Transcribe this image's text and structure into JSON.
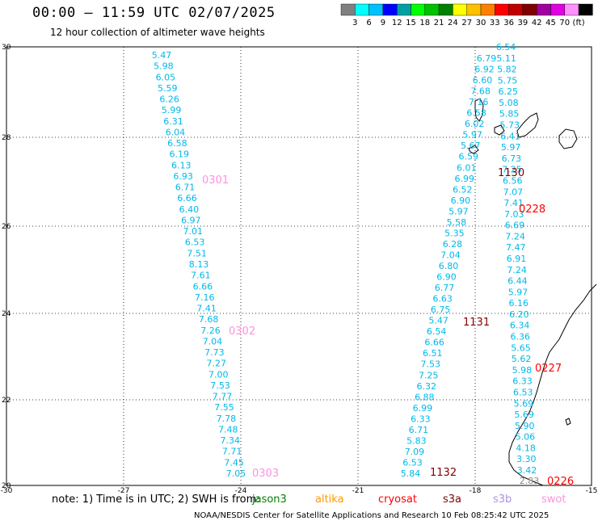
{
  "header": {
    "title": "00:00 – 11:59 UTC 02/07/2025",
    "subtitle": "12 hour collection of altimeter wave heights"
  },
  "colorbar": {
    "ticks": [
      "3",
      "6",
      "9",
      "12",
      "15",
      "18",
      "21",
      "24",
      "27",
      "30",
      "33",
      "36",
      "39",
      "42",
      "45",
      "70",
      "(ft)"
    ],
    "colors": [
      "#808080",
      "#00ffff",
      "#00c0ff",
      "#0000ff",
      "#00a0a0",
      "#00ff00",
      "#00c000",
      "#008000",
      "#ffff00",
      "#ffc000",
      "#ff8000",
      "#ff0000",
      "#c00000",
      "#800000",
      "#a000a0",
      "#e000e0",
      "#ff90ff",
      "#000000"
    ]
  },
  "axes": {
    "lon_ticks": [
      "-30",
      "-27",
      "-24",
      "-21",
      "-18",
      "-15"
    ],
    "lat_ticks": [
      "30",
      "28",
      "26",
      "24",
      "22",
      "20"
    ]
  },
  "pass_labels": [
    {
      "text": "0301",
      "color": "#ff90e0"
    },
    {
      "text": "0302",
      "color": "#ff90e0"
    },
    {
      "text": "0303",
      "color": "#ff90e0"
    },
    {
      "text": "1130",
      "color": "#800000"
    },
    {
      "text": "0228",
      "color": "#ff0000"
    },
    {
      "text": "1131",
      "color": "#800000"
    },
    {
      "text": "0227",
      "color": "#ff0000"
    },
    {
      "text": "1132",
      "color": "#800000"
    },
    {
      "text": "0226",
      "color": "#ff0000"
    }
  ],
  "track_west": [
    "5.47",
    "5.98",
    "6.05",
    "5.59",
    "6.26",
    "5.99",
    "6.31",
    "6.04",
    "6.58",
    "6.19",
    "6.13",
    "6.93",
    "6.71",
    "6.66",
    "6.40",
    "6.97",
    "7.01",
    "6.53",
    "7.51",
    "8.13",
    "7.61",
    "6.66",
    "7.16",
    "7.41",
    "7.68",
    "7.26",
    "7.04",
    "7.73",
    "7.27",
    "7.00",
    "7.53",
    "7.77",
    "7.55",
    "7.78",
    "7.48",
    "7.34",
    "7.71",
    "7.45",
    "7.05"
  ],
  "track_mid": [
    "5.84",
    "6.53",
    "7.09",
    "5.83",
    "6.71",
    "6.33",
    "6.99",
    "6.88",
    "6.32",
    "7.25",
    "7.53",
    "6.51",
    "6.66",
    "6.54",
    "5.47",
    "6.75",
    "6.63",
    "6.77",
    "6.90",
    "6.80",
    "7.04",
    "6.28",
    "5.35",
    "5.58",
    "5.97",
    "6.90",
    "6.52",
    "6.99",
    "6.01",
    "6.59",
    "5.67",
    "5.97",
    "6.02",
    "6.58",
    "7.16",
    "7.68",
    "6.60",
    "6.92",
    "6.79"
  ],
  "track_east": [
    "3.42",
    "3.30",
    "4.18",
    "5.06",
    "5.90",
    "5.69",
    "5.69",
    "6.53",
    "6.33",
    "5.98",
    "5.62",
    "5.65",
    "6.36",
    "6.34",
    "6.20",
    "6.16",
    "5.97",
    "6.44",
    "7.24",
    "6.91",
    "7.47",
    "7.24",
    "6.69",
    "7.03",
    "7.41",
    "7.07",
    "6.56",
    "7.25",
    "6.73",
    "5.97",
    "6.41",
    "5.73",
    "5.85",
    "5.08",
    "6.25",
    "5.75",
    "5.82",
    "5.11",
    "6.54"
  ],
  "track_east_gray": "2.83",
  "footer": {
    "note": "note:  1) Time is in UTC;  2) SWH is from:",
    "sats": [
      {
        "name": "jason3",
        "color": "#008000"
      },
      {
        "name": "altika",
        "color": "#ff9900"
      },
      {
        "name": "cryosat",
        "color": "#ff0000"
      },
      {
        "name": "s3a",
        "color": "#800000"
      },
      {
        "name": "s3b",
        "color": "#b090e0"
      },
      {
        "name": "swot",
        "color": "#ff90e0"
      }
    ],
    "credit": "NOAA/NESDIS Center for Satellite Applications and Research   10 Feb 08:25:42 UTC 2025"
  }
}
